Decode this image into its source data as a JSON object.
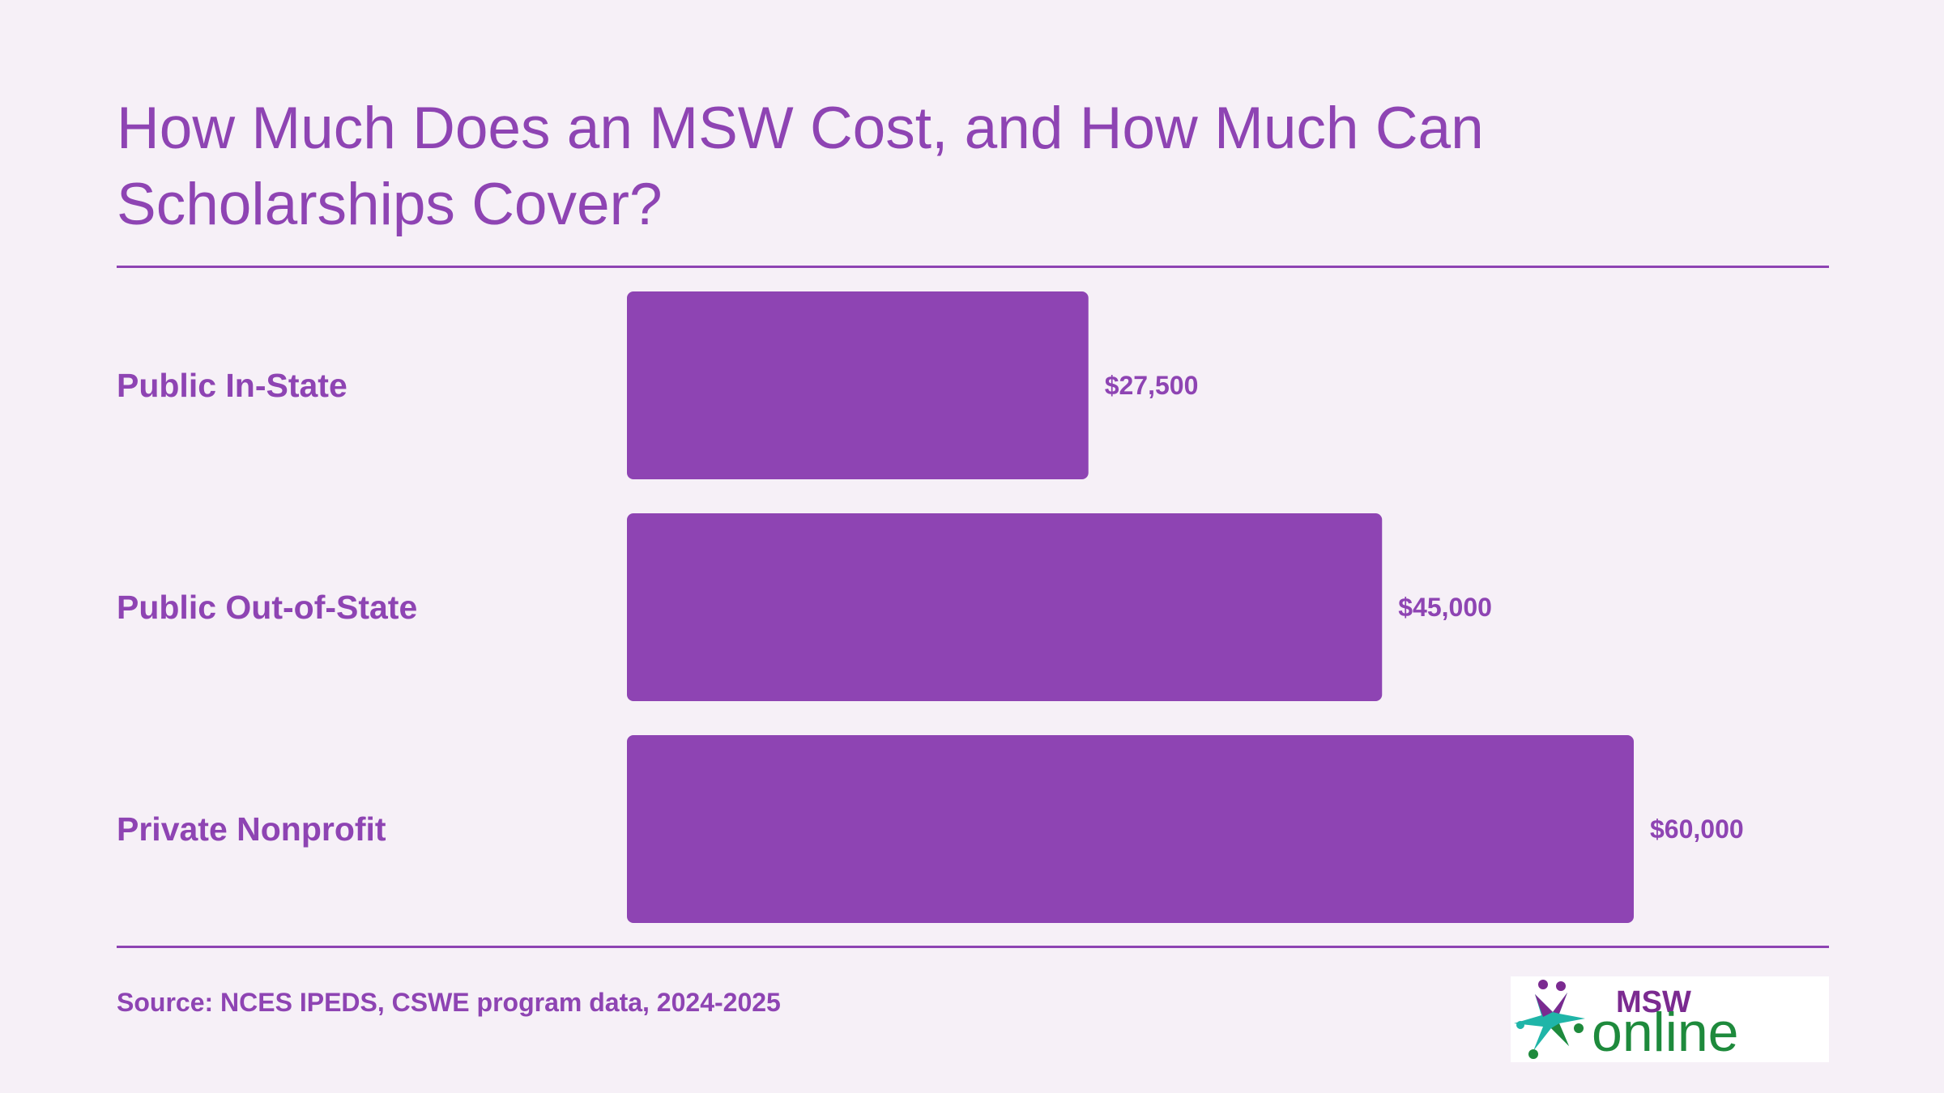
{
  "chart_data": {
    "type": "bar",
    "orientation": "horizontal",
    "title": "How Much Does an MSW Cost, and How Much Can Scholarships Cover?",
    "categories": [
      "Public In-State",
      "Public Out-of-State",
      "Private Nonprofit"
    ],
    "values": [
      27500,
      45000,
      60000
    ],
    "value_labels": [
      "$27,500",
      "$45,000",
      "$60,000"
    ],
    "xlim": [
      0,
      60000
    ],
    "grid": false,
    "legend": "none"
  },
  "source": "Source: NCES IPEDS, CSWE program data, 2024-2025",
  "logo": {
    "top_text": "MSW",
    "bottom_text": "online"
  },
  "colors": {
    "accent": "#8e44b3",
    "background": "#f6f0f7",
    "logo_green": "#1e8a3c",
    "logo_purple": "#7b2a90",
    "logo_teal": "#1fb5a8"
  }
}
